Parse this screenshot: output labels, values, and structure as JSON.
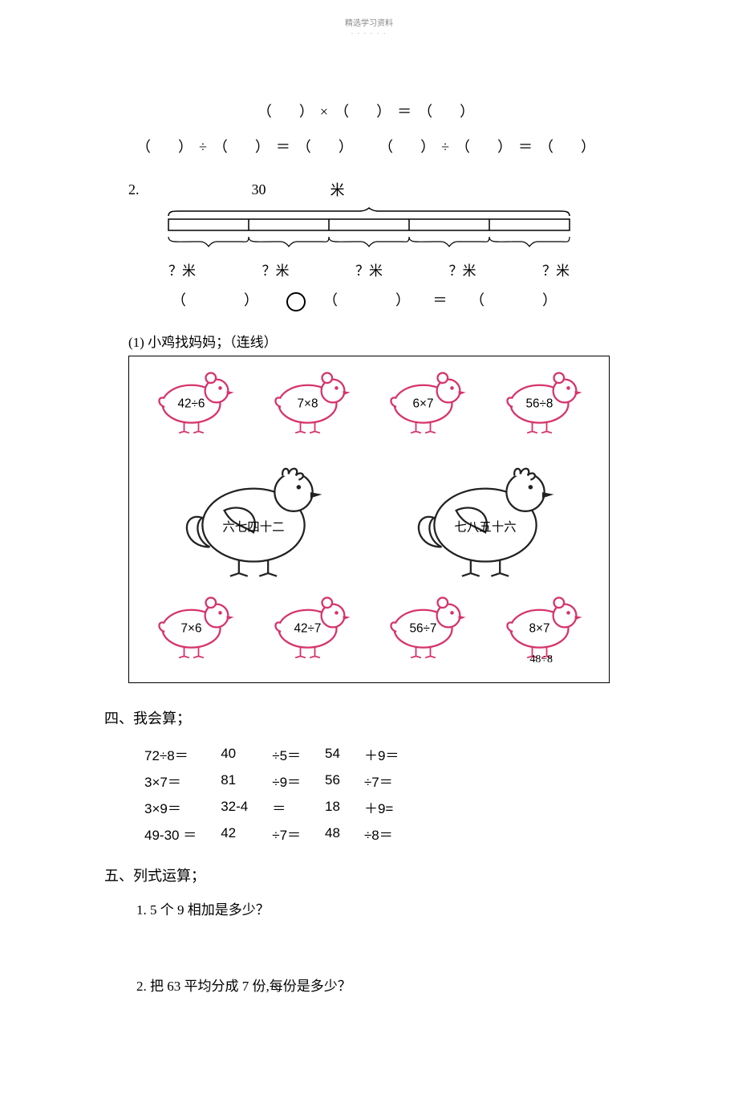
{
  "header": {
    "title": "精选学习资料",
    "sub": "- - - - - -"
  },
  "question1": {
    "eq_mult": "（　）×（　）＝（　）",
    "eq_div_left": "（　）÷（　）＝（　）",
    "eq_div_right": "（　）÷（　）＝（　）"
  },
  "question2": {
    "index": "2.",
    "total_value": "30",
    "unit_label": "米",
    "segment_label": "？米",
    "blank_expr_left": "（　　）",
    "blank_expr_mid": "（　　）",
    "blank_expr_right": "（　　）",
    "eq_sign": "＝"
  },
  "matching": {
    "label": "(1)  小鸡找妈妈；（连线）",
    "top_chicks": [
      "42÷6",
      "7×8",
      "6×7",
      "56÷8"
    ],
    "hens": [
      "六七四十二",
      "七八五十六"
    ],
    "bottom_chicks": [
      "7×6",
      "42÷7",
      "56÷7",
      "8×7"
    ],
    "extra_label": "48÷8",
    "chick_stroke": "#d6336c",
    "hen_stroke": "#222222"
  },
  "section4": {
    "title": "四、我会算；",
    "rows": [
      [
        "72÷8＝",
        "40",
        "÷5＝",
        "54",
        "＋9＝"
      ],
      [
        "3×7＝",
        "81",
        "÷9＝",
        "56",
        "÷7＝"
      ],
      [
        "3×9＝",
        "32-4",
        "＝",
        "18",
        "＋9="
      ],
      [
        "49-30 ＝",
        "42",
        "÷7＝",
        "48",
        "÷8＝"
      ]
    ]
  },
  "section5": {
    "title": "五、列式运算；",
    "q1": "1.  5  个 9 相加是多少？",
    "q2": "2.  把 63 平均分成 7 份,每份是多少？"
  }
}
